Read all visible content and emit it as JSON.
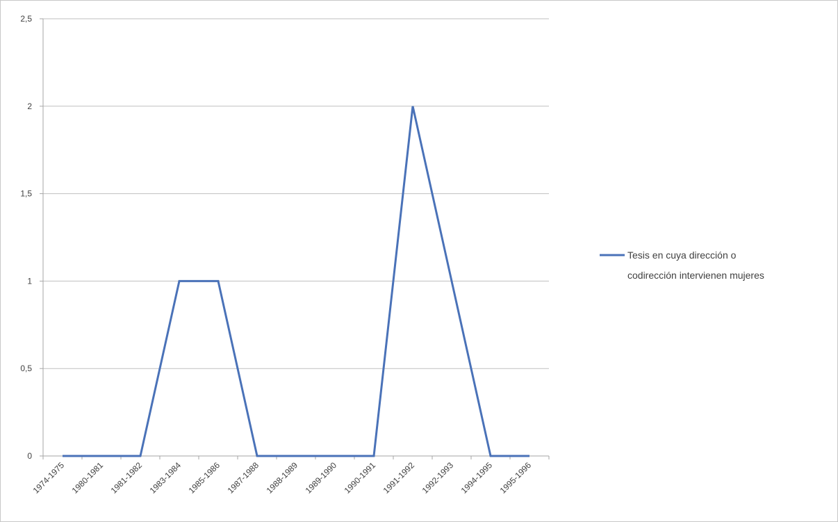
{
  "chart_data": {
    "type": "line",
    "categories": [
      "1974-1975",
      "1980-1981",
      "1981-1982",
      "1983-1984",
      "1985-1986",
      "1987-1988",
      "1988-1989",
      "1989-1990",
      "1990-1991",
      "1991-1992",
      "1992-1993",
      "1994-1995",
      "1995-1996"
    ],
    "series": [
      {
        "name": "Tesis en cuya dirección o codirección intervienen mujeres",
        "values": [
          0,
          0,
          0,
          1,
          1,
          0,
          0,
          0,
          0,
          2,
          1,
          0,
          0
        ],
        "color": "#4a72b8"
      }
    ],
    "y_ticks": [
      "0",
      "0,5",
      "1",
      "1,5",
      "2",
      "2,5"
    ],
    "ylim": [
      0,
      2.5
    ],
    "grid": true,
    "legend_position": "right",
    "legend_lines": [
      "Tesis en cuya dirección o",
      "codirección intervienen mujeres"
    ],
    "title": "",
    "xlabel": "",
    "ylabel": ""
  }
}
